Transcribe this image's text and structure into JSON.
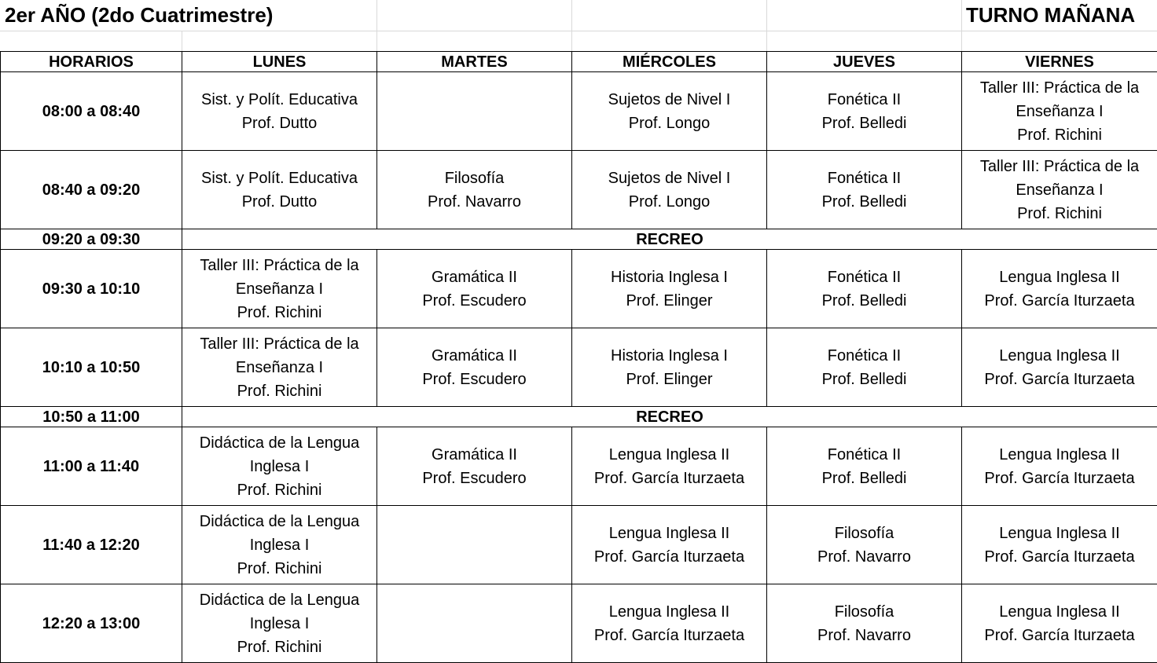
{
  "header": {
    "title": "2er AÑO (2do Cuatrimestre)",
    "shift": "TURNO MAÑANA"
  },
  "columns": [
    "HORARIOS",
    "LUNES",
    "MARTES",
    "MIÉRCOLES",
    "JUEVES",
    "VIERNES"
  ],
  "rows": [
    {
      "time": "08:00 a 08:40",
      "cells": [
        [
          "Sist. y Polít. Educativa",
          "Prof. Dutto"
        ],
        [],
        [
          "Sujetos de Nivel I",
          "Prof. Longo"
        ],
        [
          "Fonética II",
          "Prof. Belledi"
        ],
        [
          "Taller III: Práctica de la",
          "Enseñanza I",
          "Prof. Richini"
        ]
      ]
    },
    {
      "time": "08:40 a 09:20",
      "cells": [
        [
          "Sist. y Polít. Educativa",
          "Prof. Dutto"
        ],
        [
          "Filosofía",
          "Prof. Navarro"
        ],
        [
          "Sujetos de Nivel I",
          "Prof. Longo"
        ],
        [
          "Fonética II",
          "Prof. Belledi"
        ],
        [
          "Taller III: Práctica de la",
          "Enseñanza I",
          "Prof. Richini"
        ]
      ]
    },
    {
      "time": "09:20 a 09:30",
      "break": "RECREO"
    },
    {
      "time": "09:30 a 10:10",
      "cells": [
        [
          "Taller III: Práctica de la",
          "Enseñanza I",
          "Prof. Richini"
        ],
        [
          "Gramática II",
          "Prof. Escudero"
        ],
        [
          "Historia Inglesa I",
          "Prof. Elinger"
        ],
        [
          "Fonética II",
          "Prof. Belledi"
        ],
        [
          "Lengua Inglesa II",
          "Prof. García Iturzaeta"
        ]
      ]
    },
    {
      "time": "10:10 a 10:50",
      "cells": [
        [
          "Taller III: Práctica de la",
          "Enseñanza I",
          "Prof. Richini"
        ],
        [
          "Gramática II",
          "Prof. Escudero"
        ],
        [
          "Historia Inglesa I",
          "Prof. Elinger"
        ],
        [
          "Fonética II",
          "Prof. Belledi"
        ],
        [
          "Lengua Inglesa II",
          "Prof. García Iturzaeta"
        ]
      ]
    },
    {
      "time": "10:50 a 11:00",
      "break": "RECREO"
    },
    {
      "time": "11:00 a 11:40",
      "cells": [
        [
          "Didáctica de la Lengua",
          "Inglesa I",
          "Prof. Richini"
        ],
        [
          "Gramática II",
          "Prof. Escudero"
        ],
        [
          "Lengua Inglesa II",
          "Prof. García Iturzaeta"
        ],
        [
          "Fonética II",
          "Prof. Belledi"
        ],
        [
          "Lengua Inglesa II",
          "Prof. García Iturzaeta"
        ]
      ]
    },
    {
      "time": "11:40 a 12:20",
      "cells": [
        [
          "Didáctica de la Lengua",
          "Inglesa I",
          "Prof. Richini"
        ],
        [],
        [
          "Lengua Inglesa II",
          "Prof. García Iturzaeta"
        ],
        [
          "Filosofía",
          "Prof. Navarro"
        ],
        [
          "Lengua Inglesa II",
          "Prof. García Iturzaeta"
        ]
      ]
    },
    {
      "time": "12:20 a 13:00",
      "cells": [
        [
          "Didáctica de la Lengua",
          "Inglesa I",
          "Prof. Richini"
        ],
        [],
        [
          "Lengua Inglesa II",
          "Prof. García Iturzaeta"
        ],
        [
          "Filosofía",
          "Prof. Navarro"
        ],
        [
          "Lengua Inglesa II",
          "Prof. García Iturzaeta"
        ]
      ]
    }
  ]
}
